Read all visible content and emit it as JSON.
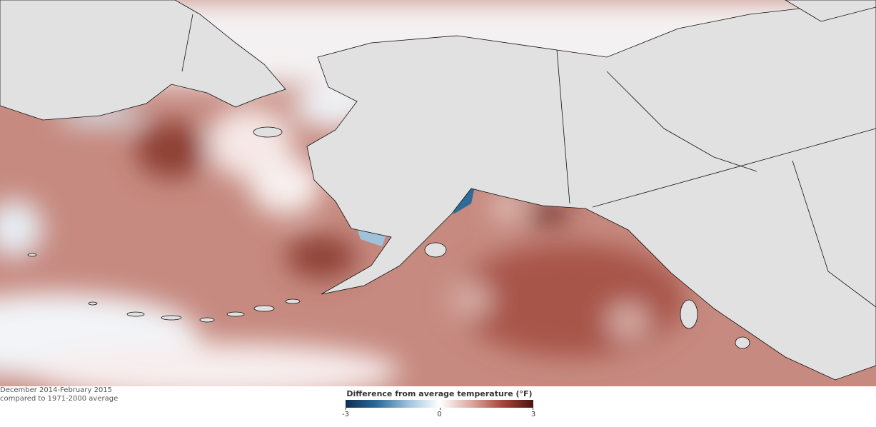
{
  "caption": {
    "line1": "December 2014-February 2015",
    "line2": "compared to 1971-2000 average"
  },
  "legend": {
    "title": "Difference from average temperature (°F)",
    "lim": [
      -3,
      3
    ],
    "ticks": [
      -3,
      0,
      3
    ]
  }
}
